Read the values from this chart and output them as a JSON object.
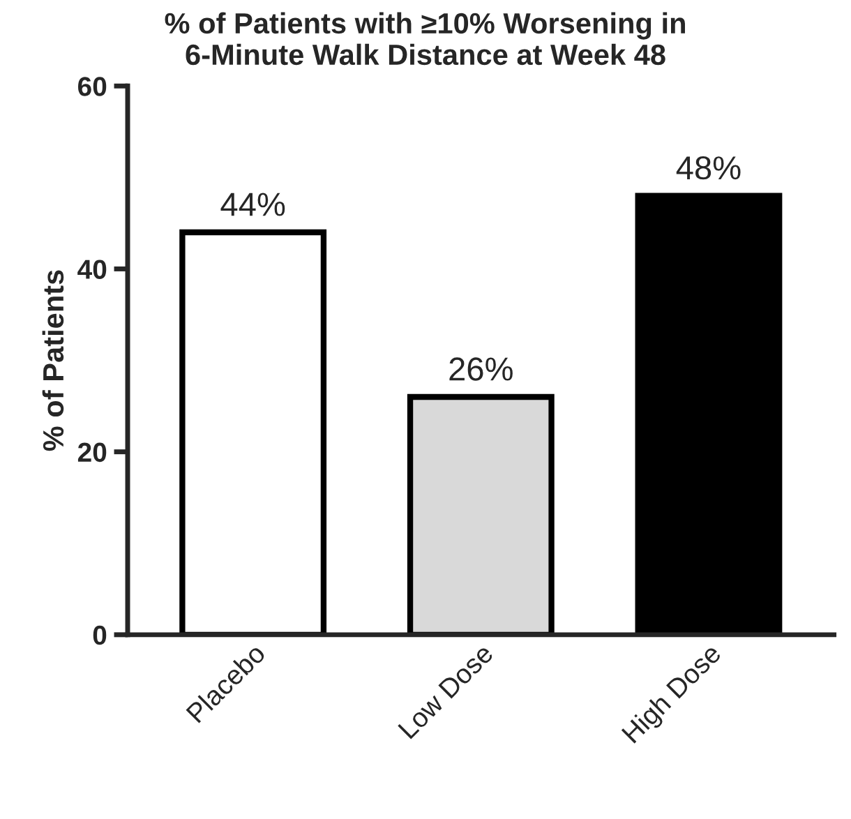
{
  "chart_data": {
    "type": "bar",
    "title": "% of Patients with ≥10% Worsening in\n6-Minute Walk Distance at Week 48",
    "ylabel": "% of Patients",
    "categories": [
      "Placebo",
      "Low Dose",
      "High Dose"
    ],
    "values": [
      44,
      26,
      48
    ],
    "colors": [
      "#ffffff",
      "#d9d9d9",
      "#000000"
    ],
    "value_labels": [
      "44%",
      "26%",
      "48%"
    ],
    "ylim": [
      0,
      60
    ],
    "yticks": [
      0,
      20,
      40,
      60
    ],
    "grid": false,
    "legend": false
  }
}
